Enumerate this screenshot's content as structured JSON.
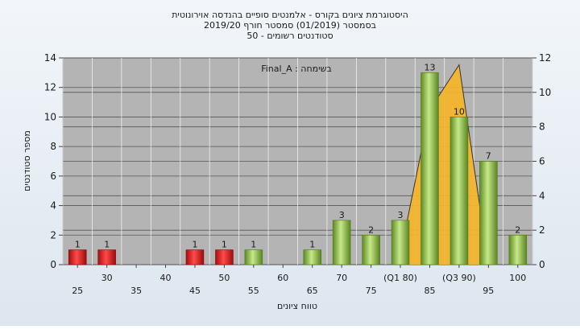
{
  "chart_data": {
    "type": "bar",
    "title_lines": [
      "היסטוגרמת ציונים בקורס - אלמנטים סופיים בהנדסה אוירונוטית",
      "בסמסטר  (01/2019)  סמסטר חורף  2019/20",
      "סטודנטים רשומים - 50"
    ],
    "subtitle": "בשימחה : Final_A",
    "ylabel": "מספר סטודנטים",
    "xlabel": "טווח ציונים",
    "ylim": [
      0,
      14
    ],
    "yticks": [
      0,
      2,
      4,
      6,
      8,
      10,
      12,
      14
    ],
    "y2lim": [
      0,
      12
    ],
    "y2ticks": [
      0,
      2,
      4,
      6,
      8,
      10,
      12
    ],
    "categories": [
      "25",
      "30",
      "35",
      "40",
      "45",
      "50",
      "55",
      "60",
      "65",
      "70",
      "75",
      "(Q1 80)",
      "85",
      "(Q3 90)",
      "95",
      "100"
    ],
    "values": [
      1,
      1,
      0,
      0,
      1,
      1,
      1,
      0,
      1,
      3,
      2,
      3,
      13,
      10,
      7,
      2
    ],
    "labels": [
      "1",
      "1",
      "",
      "",
      "1",
      "1",
      "1",
      "",
      "1",
      "3",
      "2",
      "3",
      "13",
      "10",
      "7",
      "2"
    ],
    "failing_color": "#e02020",
    "passing_color": "#8cbf3f",
    "distribution_color": "#f5b52a",
    "plot_background": "#b4b4b4",
    "grid": true,
    "distribution_curve": [
      {
        "x": "(Q1 80)",
        "y": 0.6
      },
      {
        "x": "85",
        "y": 9.0
      },
      {
        "x": "(Q3 90)",
        "y": 11.6
      },
      {
        "x": "95",
        "y": 0
      }
    ]
  }
}
